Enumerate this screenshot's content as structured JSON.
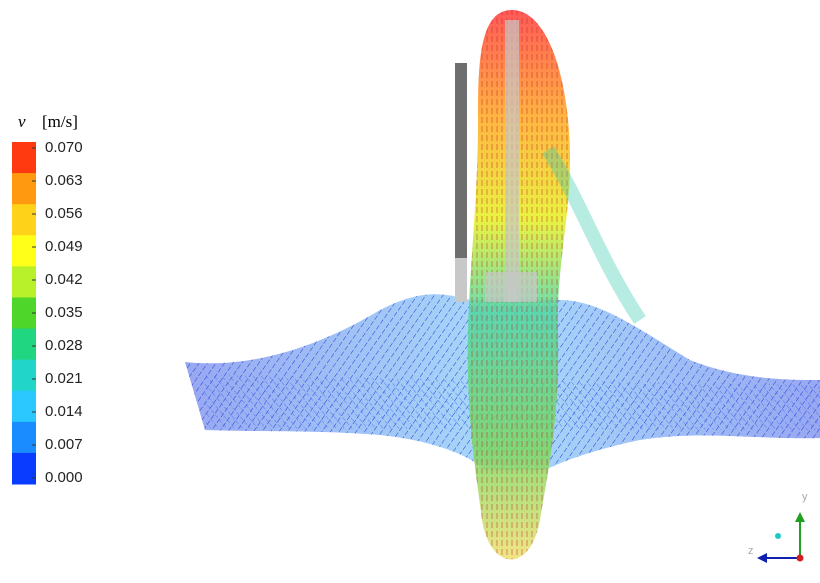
{
  "legend": {
    "variable": "v",
    "unit": "[m/s]",
    "ticks": [
      {
        "value": 0.07,
        "label": "0.070"
      },
      {
        "value": 0.063,
        "label": "0.063"
      },
      {
        "value": 0.056,
        "label": "0.056"
      },
      {
        "value": 0.049,
        "label": "0.049"
      },
      {
        "value": 0.042,
        "label": "0.042"
      },
      {
        "value": 0.035,
        "label": "0.035"
      },
      {
        "value": 0.028,
        "label": "0.028"
      },
      {
        "value": 0.021,
        "label": "0.021"
      },
      {
        "value": 0.014,
        "label": "0.014"
      },
      {
        "value": 0.007,
        "label": "0.007"
      },
      {
        "value": 0,
        "label": "0.000"
      }
    ],
    "colors": [
      "#ff3a10",
      "#ff9a10",
      "#ffd21a",
      "#ffff1a",
      "#b8f02a",
      "#4ed62a",
      "#21d680",
      "#21d6c8",
      "#2ac8ff",
      "#1a8cff",
      "#0a3cff"
    ]
  },
  "axes_triad": {
    "y": "y",
    "z": "z"
  }
}
